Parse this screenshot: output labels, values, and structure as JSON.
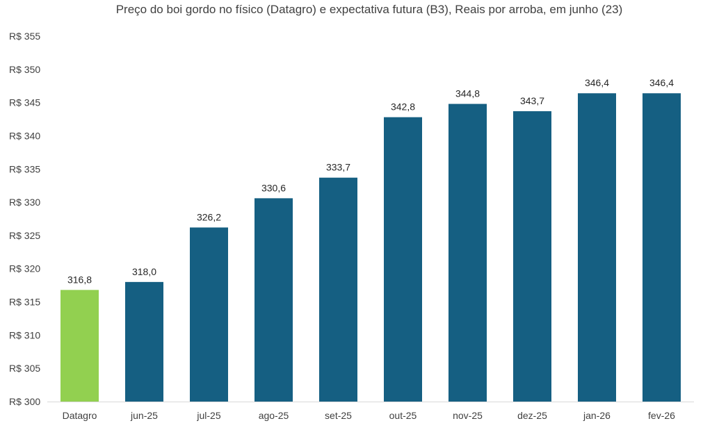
{
  "chart_data": {
    "type": "bar",
    "title": "Preço do boi gordo no físico (Datagro)  e expectativa futura (B3), Reais por arroba, em junho (23)",
    "xlabel": "",
    "ylabel": "",
    "categories": [
      "Datagro",
      "jun-25",
      "jul-25",
      "ago-25",
      "set-25",
      "out-25",
      "nov-25",
      "dez-25",
      "jan-26",
      "fev-26"
    ],
    "values": [
      316.8,
      318.0,
      326.2,
      330.6,
      333.7,
      342.8,
      344.8,
      343.7,
      346.4,
      346.4
    ],
    "value_labels": [
      "316,8",
      "318,0",
      "326,2",
      "330,6",
      "333,7",
      "342,8",
      "344,8",
      "343,7",
      "346,4",
      "346,4"
    ],
    "ylim": [
      300,
      355
    ],
    "y_ticks": [
      300,
      305,
      310,
      315,
      320,
      325,
      330,
      335,
      340,
      345,
      350,
      355
    ],
    "y_tick_labels": [
      "R$ 300",
      "R$ 305",
      "R$ 310",
      "R$ 315",
      "R$ 320",
      "R$ 325",
      "R$ 330",
      "R$ 335",
      "R$ 340",
      "R$ 345",
      "R$ 350",
      "R$ 355"
    ],
    "grid": false,
    "legend": "none",
    "colors": {
      "highlight": "#92d050",
      "bar": "#155f82",
      "axis": "#d9d9d9"
    },
    "highlight_index": 0
  }
}
